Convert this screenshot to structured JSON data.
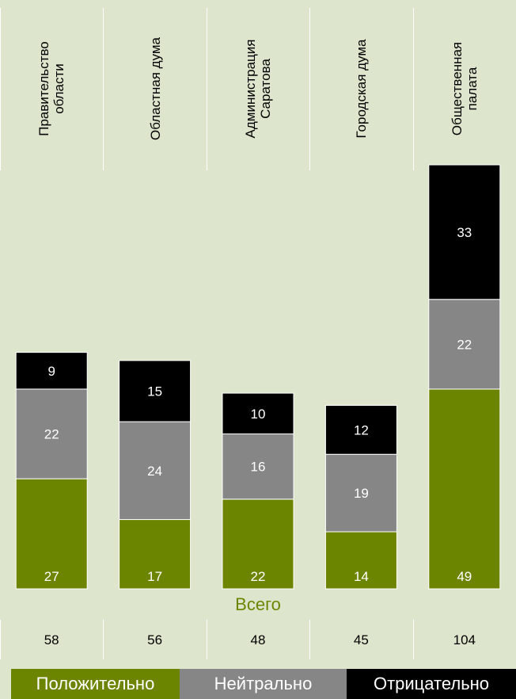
{
  "chart_data": {
    "type": "bar",
    "stacked": true,
    "categories": [
      "Правительство\nобласти",
      "Областная дума",
      "Администрация\nСаратова",
      "Городская дума",
      "Общественная\nпалата"
    ],
    "series": [
      {
        "name": "Положительно",
        "values": [
          27,
          17,
          22,
          14,
          49
        ],
        "color": "#6b8500"
      },
      {
        "name": "Нейтрально",
        "values": [
          22,
          24,
          16,
          19,
          22
        ],
        "color": "#868686"
      },
      {
        "name": "Отрицательно",
        "values": [
          9,
          15,
          10,
          12,
          33
        ],
        "color": "#000000"
      }
    ],
    "totals_title": "Всего",
    "totals": [
      58,
      56,
      48,
      45,
      104
    ],
    "legend_position": "bottom",
    "ylim": [
      0,
      104
    ]
  }
}
